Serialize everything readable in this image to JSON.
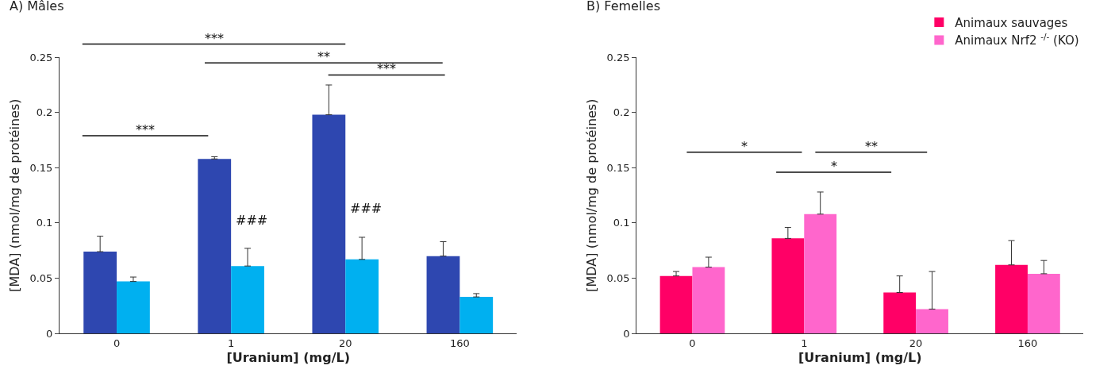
{
  "chart_data": [
    {
      "type": "bar",
      "title": "A) Mâles",
      "xlabel": "[Uranium] (mg/L)",
      "ylabel": "[MDA] (nmol/mg de protéines)",
      "categories": [
        "0",
        "1",
        "20",
        "160"
      ],
      "ylim": [
        0,
        0.25
      ],
      "yticks": [
        0,
        0.05,
        0.1,
        0.15,
        0.2,
        0.25
      ],
      "grid": false,
      "legend": false,
      "series": [
        {
          "color": "#2e47b0",
          "values": [
            0.074,
            0.158,
            0.198,
            0.07
          ],
          "errors": [
            [
              0.074,
              0.088
            ],
            [
              0.158,
              0.16
            ],
            [
              0.198,
              0.225
            ],
            [
              0.07,
              0.083
            ]
          ]
        },
        {
          "color": "#00b0f0",
          "values": [
            0.047,
            0.061,
            0.067,
            0.033
          ],
          "errors": [
            [
              0.047,
              0.051
            ],
            [
              0.061,
              0.077
            ],
            [
              0.067,
              0.087
            ],
            [
              0.033,
              0.036
            ]
          ]
        }
      ],
      "annotations": [
        "***",
        "**",
        "***",
        "***",
        {
          "text": "###",
          "x": "1",
          "y": 0.094
        },
        {
          "text": "###",
          "x": "20",
          "y": 0.105
        }
      ]
    },
    {
      "type": "bar",
      "title": "B) Femelles",
      "xlabel": "[Uranium] (mg/L)",
      "ylabel": "[MDA] (nmol/mg de protéines)",
      "categories": [
        "0",
        "1",
        "20",
        "160"
      ],
      "ylim": [
        0,
        0.25
      ],
      "yticks": [
        0,
        0.05,
        0.1,
        0.15,
        0.2,
        0.25
      ],
      "grid": false,
      "legend": "top right",
      "series": [
        {
          "name": "Animaux sauvages",
          "color": "#ff0066",
          "values": [
            0.052,
            0.086,
            0.037,
            0.062
          ],
          "errors": [
            [
              0.052,
              0.056
            ],
            [
              0.086,
              0.096
            ],
            [
              0.037,
              0.052
            ],
            [
              0.062,
              0.084
            ]
          ]
        },
        {
          "name": "Animaux Nrf2 $^{-/-}$ (KO)",
          "color": "#ff66cc",
          "values": [
            0.06,
            0.108,
            0.022,
            0.054
          ],
          "errors": [
            [
              0.06,
              0.069
            ],
            [
              0.108,
              0.128
            ],
            [
              0.022,
              0.056
            ],
            [
              0.054,
              0.066
            ]
          ]
        }
      ],
      "annotations": [
        "*",
        "**",
        "*"
      ]
    }
  ]
}
